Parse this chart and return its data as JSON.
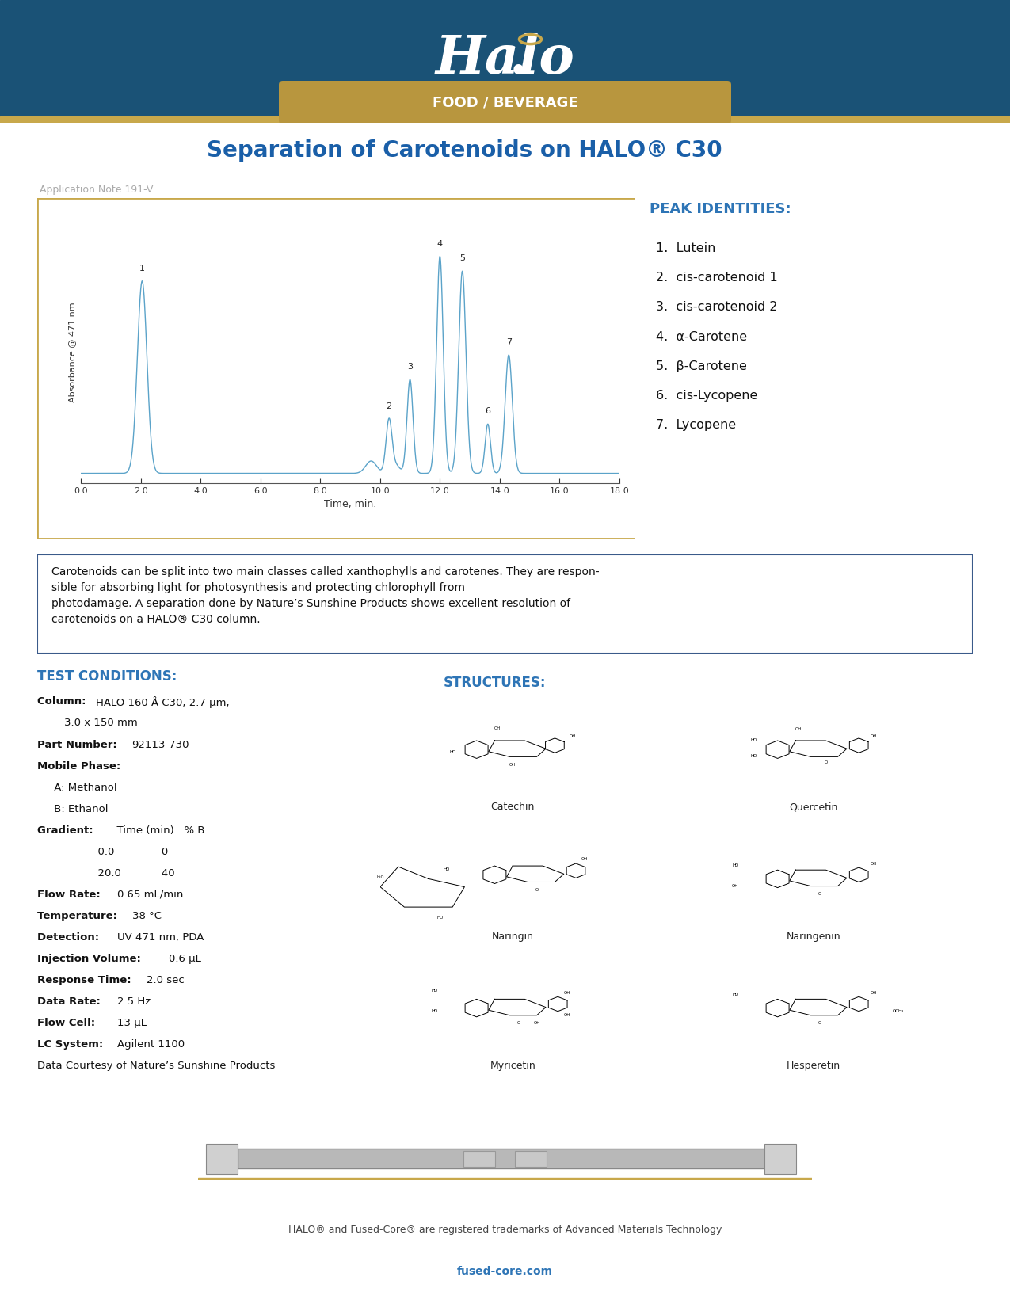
{
  "title": "Separation of Carotenoids on HALO® C30",
  "app_note": "Application Note 191-V",
  "header_bg_color": "#1a5276",
  "header_gold_color": "#b8963e",
  "food_beverage_text": "FOOD / BEVERAGE",
  "subtitle_color": "#1a5fa8",
  "chromatogram_color": "#5ba3c9",
  "chromatogram_border_color": "#c8a84b",
  "xlabel": "Time, min.",
  "ylabel": "Absorbance @ 471 nm",
  "xmin": 0.0,
  "xmax": 18.0,
  "xticks": [
    0.0,
    2.0,
    4.0,
    6.0,
    8.0,
    10.0,
    12.0,
    14.0,
    16.0,
    18.0
  ],
  "peak_identities_title": "PEAK IDENTITIES:",
  "peak_identities": [
    "1.  Lutein",
    "2.  cis-carotenoid 1",
    "3.  cis-carotenoid 2",
    "4.  α-Carotene",
    "5.  β-Carotene",
    "6.  cis-Lycopene",
    "7.  Lycopene"
  ],
  "peak_heights": [
    0.78,
    0.22,
    0.38,
    0.88,
    0.82,
    0.2,
    0.48
  ],
  "peak_times": [
    2.05,
    10.3,
    11.0,
    12.0,
    12.75,
    13.6,
    14.3
  ],
  "peak_widths": [
    0.16,
    0.1,
    0.1,
    0.11,
    0.12,
    0.09,
    0.12
  ],
  "peak_labels": [
    "1",
    "2",
    "3",
    "4",
    "5",
    "6",
    "7"
  ],
  "description_text": "Carotenoids can be split into two main classes called xanthophylls and carotenes. They are respon-\nsible for absorbing light for photosynthesis and protecting chlorophyll from\nphotodamage. A separation done by Nature’s Sunshine Products shows excellent resolution of\ncarotenoids on a HALO® C30 column.",
  "description_border_color": "#3a5a8a",
  "test_conditions_title": "TEST CONDITIONS:",
  "structures_title": "STRUCTURES:",
  "accent_color": "#2e75b6",
  "footer_text": "HALO® and Fused-Core® are registered trademarks of Advanced Materials Technology",
  "footer_url": "fused-core.com",
  "footer_url_color": "#2e75b6",
  "background_color": "#ffffff",
  "gold_bar_color": "#c8a84b",
  "struct_names": [
    "Catechin",
    "Quercetin",
    "Naringin",
    "Naringenin",
    "Myricetin",
    "Hesperetin"
  ]
}
